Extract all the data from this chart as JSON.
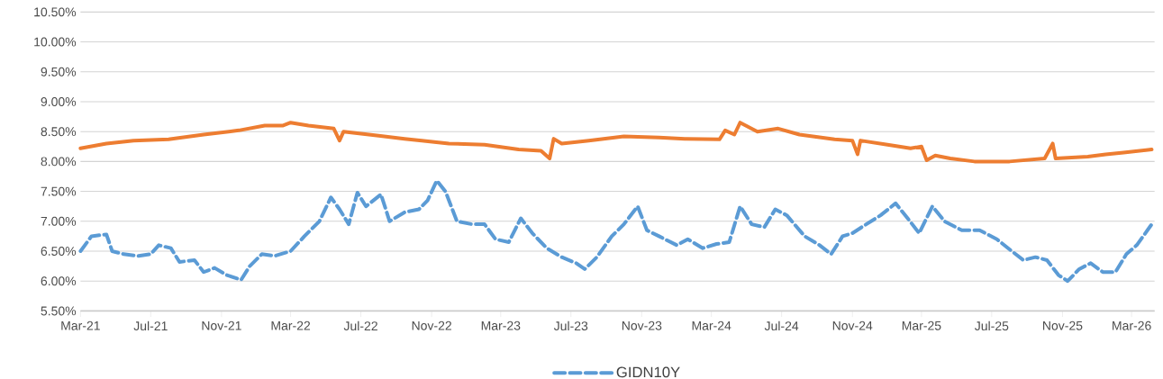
{
  "chart_data": {
    "type": "line",
    "legend": "bottom",
    "grid": "y",
    "marker": "none",
    "xlim": [
      "2021-03-01",
      "2026-04-10"
    ],
    "xticks": [
      {
        "value": "2021-03-01",
        "label": "Mar-21"
      },
      {
        "value": "2021-07-01",
        "label": "Jul-21"
      },
      {
        "value": "2021-11-01",
        "label": "Nov-21"
      },
      {
        "value": "2022-03-01",
        "label": "Mar-22"
      },
      {
        "value": "2022-07-01",
        "label": "Jul-22"
      },
      {
        "value": "2022-11-01",
        "label": "Nov-22"
      },
      {
        "value": "2023-03-01",
        "label": "Mar-23"
      },
      {
        "value": "2023-07-01",
        "label": "Jul-23"
      },
      {
        "value": "2023-11-01",
        "label": "Nov-23"
      },
      {
        "value": "2024-03-01",
        "label": "Mar-24"
      },
      {
        "value": "2024-07-01",
        "label": "Jul-24"
      },
      {
        "value": "2024-11-01",
        "label": "Nov-24"
      },
      {
        "value": "2025-03-01",
        "label": "Mar-25"
      },
      {
        "value": "2025-07-01",
        "label": "Jul-25"
      },
      {
        "value": "2025-11-01",
        "label": "Nov-25"
      },
      {
        "value": "2026-03-01",
        "label": "Mar-26"
      }
    ],
    "ylim": [
      5.5,
      10.5
    ],
    "yticks": [
      {
        "value": 5.5,
        "label": "5.50%"
      },
      {
        "value": 6.0,
        "label": "6.00%"
      },
      {
        "value": 6.5,
        "label": "6.50%"
      },
      {
        "value": 7.0,
        "label": "7.00%"
      },
      {
        "value": 7.5,
        "label": "7.50%"
      },
      {
        "value": 8.0,
        "label": "8.00%"
      },
      {
        "value": 8.5,
        "label": "8.50%"
      },
      {
        "value": 9.0,
        "label": "9.00%"
      },
      {
        "value": 9.5,
        "label": "9.50%"
      },
      {
        "value": 10.0,
        "label": "10.00%"
      },
      {
        "value": 10.5,
        "label": "10.50%"
      }
    ],
    "series": [
      {
        "name": "GIDN10Y",
        "color": "#5b9bd5",
        "line_style": "dashed",
        "x": [
          "2021-03-01",
          "2021-03-20",
          "2021-04-15",
          "2021-04-25",
          "2021-05-15",
          "2021-06-10",
          "2021-07-01",
          "2021-07-15",
          "2021-08-05",
          "2021-08-20",
          "2021-09-15",
          "2021-10-01",
          "2021-10-20",
          "2021-11-10",
          "2021-12-05",
          "2021-12-20",
          "2022-01-10",
          "2022-02-01",
          "2022-03-01",
          "2022-03-25",
          "2022-04-20",
          "2022-05-10",
          "2022-05-25",
          "2022-06-10",
          "2022-06-25",
          "2022-07-10",
          "2022-08-05",
          "2022-08-20",
          "2022-09-15",
          "2022-10-10",
          "2022-10-25",
          "2022-11-10",
          "2022-11-25",
          "2022-12-15",
          "2023-01-10",
          "2023-02-01",
          "2023-02-20",
          "2023-03-15",
          "2023-04-05",
          "2023-04-25",
          "2023-05-20",
          "2023-06-15",
          "2023-07-10",
          "2023-07-25",
          "2023-08-15",
          "2023-09-10",
          "2023-10-01",
          "2023-10-25",
          "2023-11-10",
          "2023-12-01",
          "2024-01-01",
          "2024-01-20",
          "2024-02-15",
          "2024-03-10",
          "2024-04-01",
          "2024-04-20",
          "2024-05-10",
          "2024-06-01",
          "2024-06-20",
          "2024-07-10",
          "2024-08-10",
          "2024-09-05",
          "2024-09-25",
          "2024-10-15",
          "2024-11-01",
          "2024-11-25",
          "2024-12-20",
          "2025-01-15",
          "2025-02-05",
          "2025-02-25",
          "2025-03-20",
          "2025-04-10",
          "2025-05-10",
          "2025-06-10",
          "2025-07-10",
          "2025-08-05",
          "2025-08-25",
          "2025-09-15",
          "2025-10-05",
          "2025-10-25",
          "2025-11-10",
          "2025-11-30",
          "2025-12-20",
          "2026-01-10",
          "2026-02-01",
          "2026-02-20",
          "2026-03-10",
          "2026-04-05"
        ],
        "values": [
          6.5,
          6.75,
          6.78,
          6.5,
          6.45,
          6.42,
          6.45,
          6.6,
          6.55,
          6.32,
          6.35,
          6.15,
          6.22,
          6.1,
          6.02,
          6.25,
          6.45,
          6.42,
          6.5,
          6.75,
          7.0,
          7.4,
          7.2,
          6.95,
          7.48,
          7.25,
          7.45,
          7.0,
          7.15,
          7.2,
          7.35,
          7.68,
          7.5,
          7.0,
          6.95,
          6.95,
          6.7,
          6.65,
          7.05,
          6.8,
          6.55,
          6.4,
          6.3,
          6.2,
          6.4,
          6.75,
          6.95,
          7.25,
          6.85,
          6.75,
          6.6,
          6.7,
          6.55,
          6.62,
          6.65,
          7.25,
          6.95,
          6.9,
          7.2,
          7.1,
          6.75,
          6.6,
          6.45,
          6.75,
          6.8,
          6.95,
          7.1,
          7.3,
          7.05,
          6.8,
          7.25,
          7.0,
          6.85,
          6.85,
          6.7,
          6.5,
          6.35,
          6.4,
          6.35,
          6.1,
          6.0,
          6.2,
          6.3,
          6.15,
          6.15,
          6.45,
          6.6,
          6.95
        ]
      },
      {
        "color": "#ed7d31",
        "line_style": "solid",
        "x": [
          "2021-03-01",
          "2021-04-15",
          "2021-06-01",
          "2021-08-01",
          "2021-10-01",
          "2021-12-01",
          "2022-01-15",
          "2022-02-15",
          "2022-03-01",
          "2022-04-01",
          "2022-05-15",
          "2022-05-25",
          "2022-06-01",
          "2022-08-01",
          "2022-09-15",
          "2022-10-15",
          "2022-12-01",
          "2023-02-01",
          "2023-04-01",
          "2023-05-10",
          "2023-05-25",
          "2023-06-01",
          "2023-06-15",
          "2023-08-01",
          "2023-10-01",
          "2023-12-01",
          "2024-01-15",
          "2024-03-15",
          "2024-03-25",
          "2024-04-10",
          "2024-04-20",
          "2024-05-20",
          "2024-06-25",
          "2024-08-01",
          "2024-10-01",
          "2024-11-01",
          "2024-11-10",
          "2024-11-15",
          "2025-01-01",
          "2025-02-10",
          "2025-03-01",
          "2025-03-10",
          "2025-03-25",
          "2025-04-20",
          "2025-06-01",
          "2025-08-01",
          "2025-10-01",
          "2025-10-15",
          "2025-10-20",
          "2025-12-15",
          "2026-01-15",
          "2026-02-15",
          "2026-04-05"
        ],
        "values": [
          8.22,
          8.3,
          8.35,
          8.37,
          8.45,
          8.52,
          8.6,
          8.6,
          8.65,
          8.6,
          8.55,
          8.35,
          8.5,
          8.43,
          8.38,
          8.35,
          8.3,
          8.28,
          8.2,
          8.18,
          8.05,
          8.38,
          8.3,
          8.35,
          8.42,
          8.4,
          8.38,
          8.37,
          8.52,
          8.45,
          8.65,
          8.5,
          8.55,
          8.45,
          8.37,
          8.35,
          8.12,
          8.35,
          8.28,
          8.22,
          8.25,
          8.02,
          8.1,
          8.05,
          8.0,
          8.0,
          8.05,
          8.3,
          8.05,
          8.08,
          8.12,
          8.15,
          8.2
        ]
      }
    ]
  }
}
